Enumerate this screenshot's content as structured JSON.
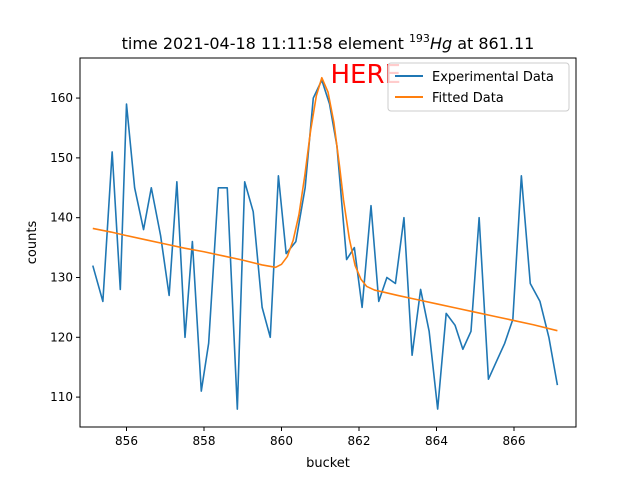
{
  "chart_data": {
    "type": "line",
    "title": {
      "prefix": "time 2021-04-18 11:11:58 element ",
      "isotope_mass": "193",
      "element_symbol": "Hg",
      "suffix": " at 861.11"
    },
    "xlabel": "bucket",
    "ylabel": "counts",
    "xlim": [
      854.8,
      867.6
    ],
    "ylim": [
      105,
      166.7
    ],
    "xticks": [
      856,
      858,
      860,
      862,
      864,
      866
    ],
    "yticks": [
      110,
      120,
      130,
      140,
      150,
      160
    ],
    "legend_position": "upper-right",
    "annotation": {
      "text": "HERE",
      "x": 861.11,
      "y": 163.5,
      "color": "#ff0000"
    },
    "series": [
      {
        "name": "Experimental Data",
        "color": "#1f77b4",
        "x": [
          855.13,
          855.39,
          855.63,
          855.84,
          856.0,
          856.21,
          856.44,
          856.64,
          856.88,
          857.1,
          857.3,
          857.51,
          857.7,
          857.93,
          858.12,
          858.37,
          858.6,
          858.86,
          859.05,
          859.27,
          859.5,
          859.71,
          859.92,
          860.12,
          860.37,
          860.61,
          860.82,
          861.04,
          861.24,
          861.43,
          861.68,
          861.88,
          862.08,
          862.31,
          862.51,
          862.72,
          862.94,
          863.16,
          863.37,
          863.59,
          863.81,
          864.03,
          864.25,
          864.48,
          864.68,
          864.89,
          865.1,
          865.34,
          865.55,
          865.76,
          865.97,
          866.19,
          866.42,
          866.67,
          866.9,
          867.12
        ],
        "y": [
          132,
          126,
          151,
          128,
          159,
          145,
          138,
          145,
          137,
          127,
          146,
          120,
          136,
          111,
          119,
          145,
          145,
          108,
          146,
          141,
          125,
          120,
          147,
          134,
          136,
          145,
          160,
          163,
          159,
          152,
          133,
          135,
          125,
          142,
          126,
          130,
          129,
          140,
          117,
          128,
          121,
          108,
          124,
          122,
          118,
          121,
          140,
          113,
          116,
          119,
          123,
          147,
          129,
          126,
          120,
          112
        ]
      },
      {
        "name": "Fitted Data",
        "color": "#ff7f0e",
        "x": [
          855.13,
          855.6,
          856.0,
          856.5,
          857.0,
          857.5,
          858.0,
          858.5,
          859.0,
          859.5,
          859.85,
          860.0,
          860.15,
          860.3,
          860.45,
          860.6,
          860.75,
          860.9,
          861.04,
          861.2,
          861.35,
          861.5,
          861.6,
          861.75,
          861.9,
          862.05,
          862.2,
          862.4,
          862.6,
          863.0,
          863.5,
          864.0,
          864.5,
          865.0,
          865.5,
          866.0,
          866.5,
          867.12
        ],
        "y": [
          138.2,
          137.6,
          137.0,
          136.3,
          135.6,
          134.9,
          134.3,
          133.6,
          132.9,
          132.1,
          131.7,
          132.2,
          133.5,
          136.2,
          140.5,
          147.0,
          154.5,
          160.4,
          163.4,
          161.0,
          156.0,
          148.5,
          143.0,
          136.5,
          132.0,
          129.7,
          128.5,
          127.9,
          127.6,
          127.0,
          126.3,
          125.6,
          124.9,
          124.2,
          123.5,
          122.8,
          122.1,
          121.1
        ]
      }
    ]
  }
}
